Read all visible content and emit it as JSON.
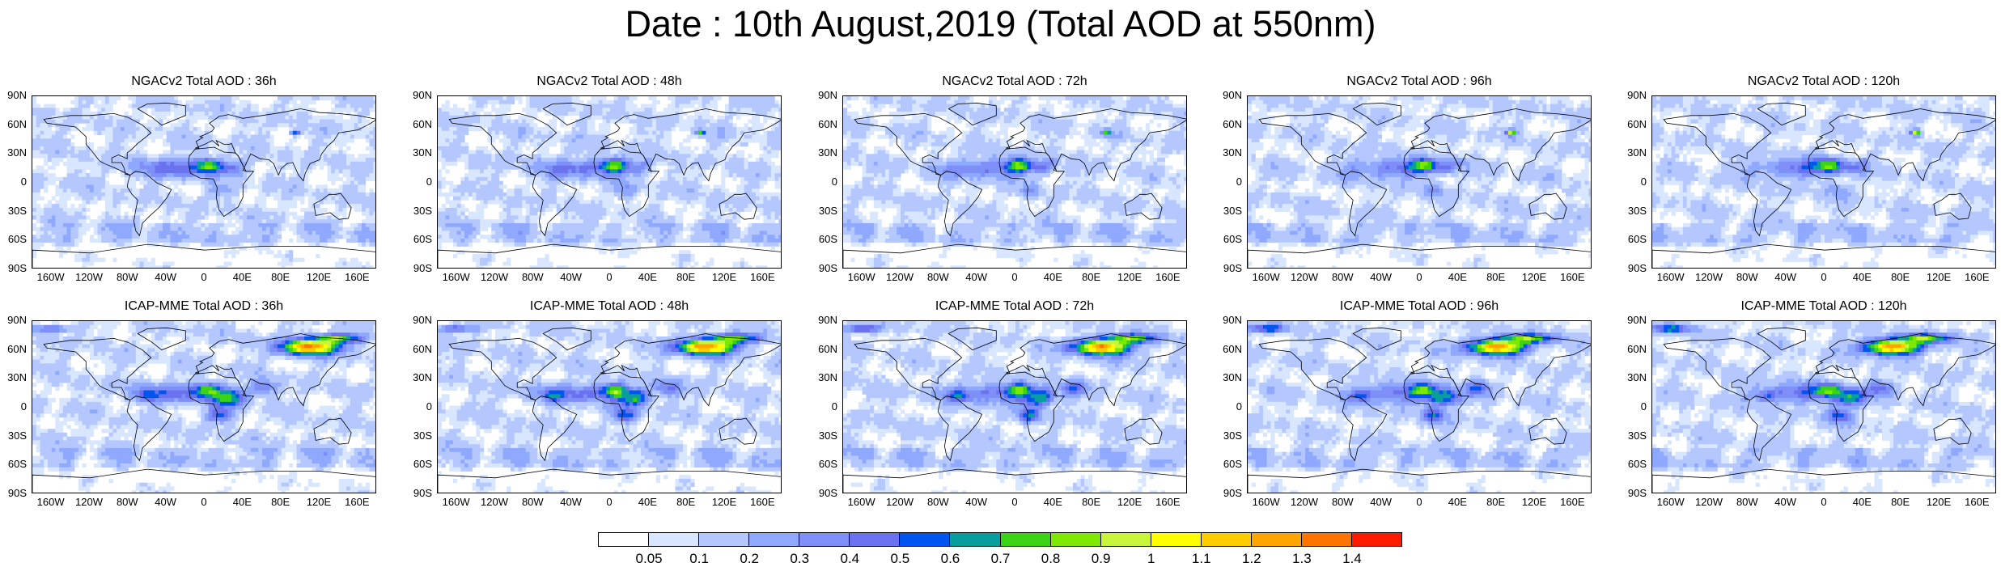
{
  "title": "Date : 10th August,2019 (Total AOD at 550nm)",
  "panels": [
    {
      "title": "NGACv2 Total AOD : 36h",
      "model": "ngac"
    },
    {
      "title": "NGACv2 Total AOD : 48h",
      "model": "ngac"
    },
    {
      "title": "NGACv2 Total AOD : 72h",
      "model": "ngac"
    },
    {
      "title": "NGACv2 Total AOD : 96h",
      "model": "ngac"
    },
    {
      "title": "NGACv2 Total AOD : 120h",
      "model": "ngac"
    },
    {
      "title": "ICAP-MME Total AOD : 36h",
      "model": "icap"
    },
    {
      "title": "ICAP-MME Total AOD : 48h",
      "model": "icap"
    },
    {
      "title": "ICAP-MME Total AOD : 72h",
      "model": "icap"
    },
    {
      "title": "ICAP-MME Total AOD : 96h",
      "model": "icap"
    },
    {
      "title": "ICAP-MME Total AOD : 120h",
      "model": "icap"
    }
  ],
  "lat_ticks": [
    "90N",
    "60N",
    "30N",
    "0",
    "30S",
    "60S",
    "90S"
  ],
  "lon_ticks": [
    "160W",
    "120W",
    "80W",
    "40W",
    "0",
    "40E",
    "80E",
    "120E",
    "160E"
  ],
  "colorbar": {
    "labels": [
      "0.05",
      "0.1",
      "0.2",
      "0.3",
      "0.4",
      "0.5",
      "0.6",
      "0.7",
      "0.8",
      "0.9",
      "1",
      "1.1",
      "1.2",
      "1.3",
      "1.4"
    ],
    "colors": [
      "#ffffff",
      "#d9e6ff",
      "#b4c8ff",
      "#8fa9ff",
      "#7e8ff7",
      "#6b72f0",
      "#0055ee",
      "#099e9e",
      "#3bd316",
      "#7ee800",
      "#c8f53a",
      "#ffff00",
      "#ffcc00",
      "#ffa400",
      "#ff7400",
      "#ff1a00"
    ]
  }
}
